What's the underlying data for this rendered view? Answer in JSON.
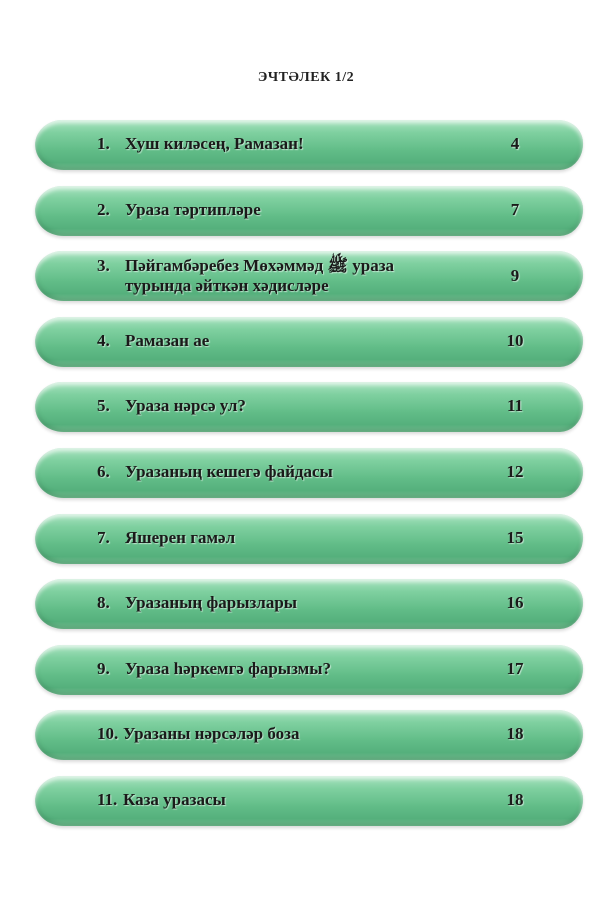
{
  "header": {
    "title": "ЭЧТӘЛЕК 1/2"
  },
  "colors": {
    "bar_green": "#62bd88",
    "bar_highlight": "#a9e3c0",
    "text": "#1a1a1a"
  },
  "toc": [
    {
      "number": "1.",
      "title": "Хуш киләсең, Рамазан!",
      "page": "4"
    },
    {
      "number": "2.",
      "title": "Ураза тәртипләре",
      "page": "7"
    },
    {
      "number": "3.",
      "title": "Пәйгамбәребез Мөхәммәд ﷺ ураза",
      "title_line2": "турында әйткән хәдисләре",
      "page": "9"
    },
    {
      "number": "4.",
      "title": "Рамазан ае",
      "page": "10"
    },
    {
      "number": "5.",
      "title": "Ураза нәрсә ул?",
      "page": "11"
    },
    {
      "number": "6.",
      "title": "Уразаның кешегә файдасы",
      "page": "12"
    },
    {
      "number": "7.",
      "title": "Яшерен гамәл",
      "page": "15"
    },
    {
      "number": "8.",
      "title": "Уразаның фарызлары",
      "page": "16"
    },
    {
      "number": "9.",
      "title": "Ураза һәркемгә фарызмы?",
      "page": "17"
    },
    {
      "number": "10.",
      "title": "Уразаны нәрсәләр боза",
      "page": "18"
    },
    {
      "number": "11.",
      "title": "Каза уразасы",
      "page": "18"
    }
  ]
}
